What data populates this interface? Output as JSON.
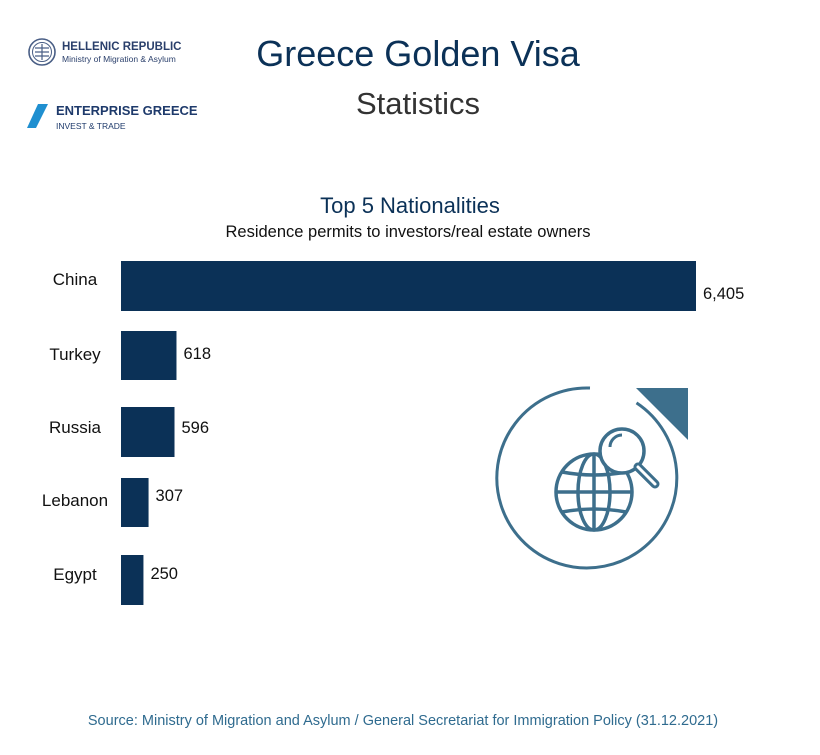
{
  "header": {
    "title": "Greece Golden Visa",
    "subtitle": "Statistics"
  },
  "logos": {
    "hellenic": {
      "line1": "HELLENIC REPUBLIC",
      "line2": "Ministry of Migration & Asylum"
    },
    "enterprise": {
      "line1": "ENTERPRISE GREECE",
      "line2": "INVEST & TRADE"
    }
  },
  "chart_data": {
    "type": "bar",
    "orientation": "horizontal",
    "title": "Top 5 Nationalities",
    "subtitle": "Residence permits to investors/real estate owners",
    "categories": [
      "China",
      "Turkey",
      "Russia",
      "Lebanon",
      "Egypt"
    ],
    "values": [
      6405,
      618,
      596,
      307,
      250
    ],
    "value_labels": [
      "6,405",
      "618",
      "596",
      "307",
      "250"
    ],
    "xlim": [
      0,
      6405
    ],
    "grid": false,
    "legend": "none"
  },
  "footer": {
    "source": "Source: Ministry of Migration and Asylum / General Secretariat for Immigration Policy (31.12.2021)"
  },
  "colors": {
    "bar": "#0b3157",
    "title": "#0b3157",
    "accent": "#3d6f8c",
    "source": "#2f6b8f"
  },
  "icons": [
    "crest-icon",
    "enterprise-chevron-icon",
    "globe-search-icon"
  ]
}
